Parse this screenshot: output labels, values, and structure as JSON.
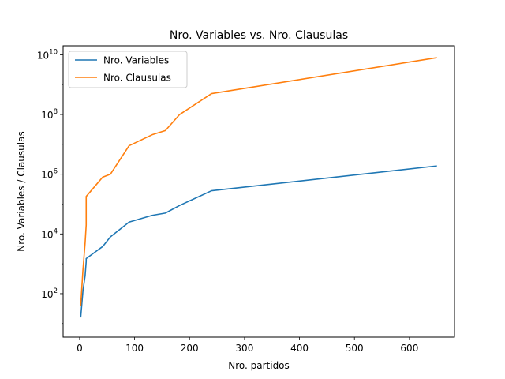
{
  "chart_data": {
    "type": "line",
    "title": "Nro. Variables vs. Nro. Clausulas",
    "xlabel": "Nro. partidos",
    "ylabel": "Nro. Variables / Clausulas",
    "yscale": "log",
    "xlim": [
      -30,
      682
    ],
    "ylim": [
      3.5,
      20000000000
    ],
    "xticks": [
      0,
      100,
      200,
      300,
      400,
      500,
      600
    ],
    "yticks": [
      {
        "value": 100,
        "base": "10",
        "exp": "2"
      },
      {
        "value": 10000,
        "base": "10",
        "exp": "4"
      },
      {
        "value": 1000000,
        "base": "10",
        "exp": "6"
      },
      {
        "value": 100000000,
        "base": "10",
        "exp": "8"
      },
      {
        "value": 10000000000,
        "base": "10",
        "exp": "10"
      }
    ],
    "grid": false,
    "legend_position": "top-left",
    "series": [
      {
        "name": "Nro. Variables",
        "color": "#1f77b4",
        "x": [
          2,
          6,
          10,
          12,
          12,
          42,
          56,
          90,
          132,
          156,
          182,
          240,
          650
        ],
        "y": [
          16,
          120,
          400,
          1200,
          1500,
          3800,
          8000,
          25000,
          42000,
          50000,
          90000,
          280000,
          1900000
        ]
      },
      {
        "name": "Nro. Clausulas",
        "color": "#ff7f0e",
        "x": [
          2,
          6,
          10,
          12,
          12,
          42,
          56,
          90,
          132,
          156,
          182,
          240,
          650
        ],
        "y": [
          40,
          600,
          5000,
          20000,
          180000,
          800000,
          1000000,
          9000000,
          21000000,
          29000000,
          100000000,
          500000000,
          8000000000
        ]
      }
    ]
  }
}
